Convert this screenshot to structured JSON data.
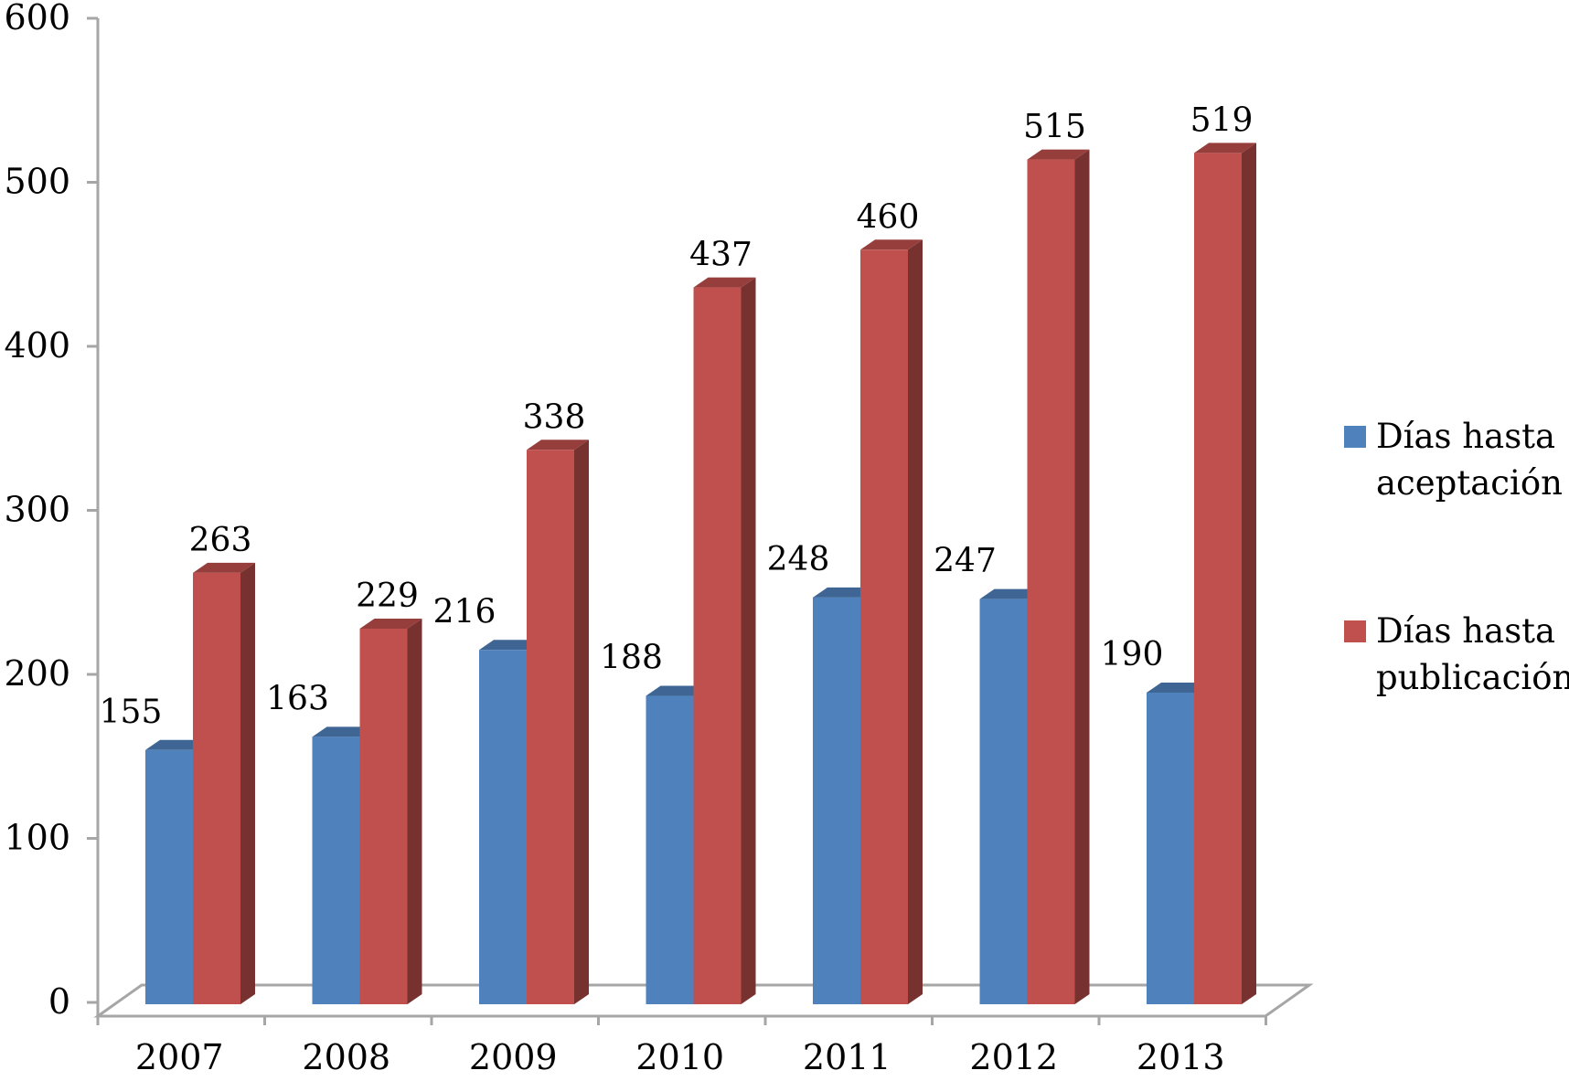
{
  "chart_data": {
    "type": "bar",
    "categories": [
      "2007",
      "2008",
      "2009",
      "2010",
      "2011",
      "2012",
      "2013"
    ],
    "series": [
      {
        "name": "Días hasta aceptación",
        "legend_lines": [
          "Días hasta",
          "aceptación"
        ],
        "color": "#4F81BD",
        "values": [
          155,
          163,
          216,
          188,
          248,
          247,
          190
        ]
      },
      {
        "name": "Días hasta publicación",
        "legend_lines": [
          "Días hasta",
          "publicación"
        ],
        "color": "#C0504D",
        "values": [
          263,
          229,
          338,
          437,
          460,
          515,
          519
        ]
      }
    ],
    "ylim": [
      0,
      600
    ],
    "yticks": [
      0,
      100,
      200,
      300,
      400,
      500,
      600
    ],
    "grid": false,
    "legend_position": "right",
    "data_labels": true
  }
}
